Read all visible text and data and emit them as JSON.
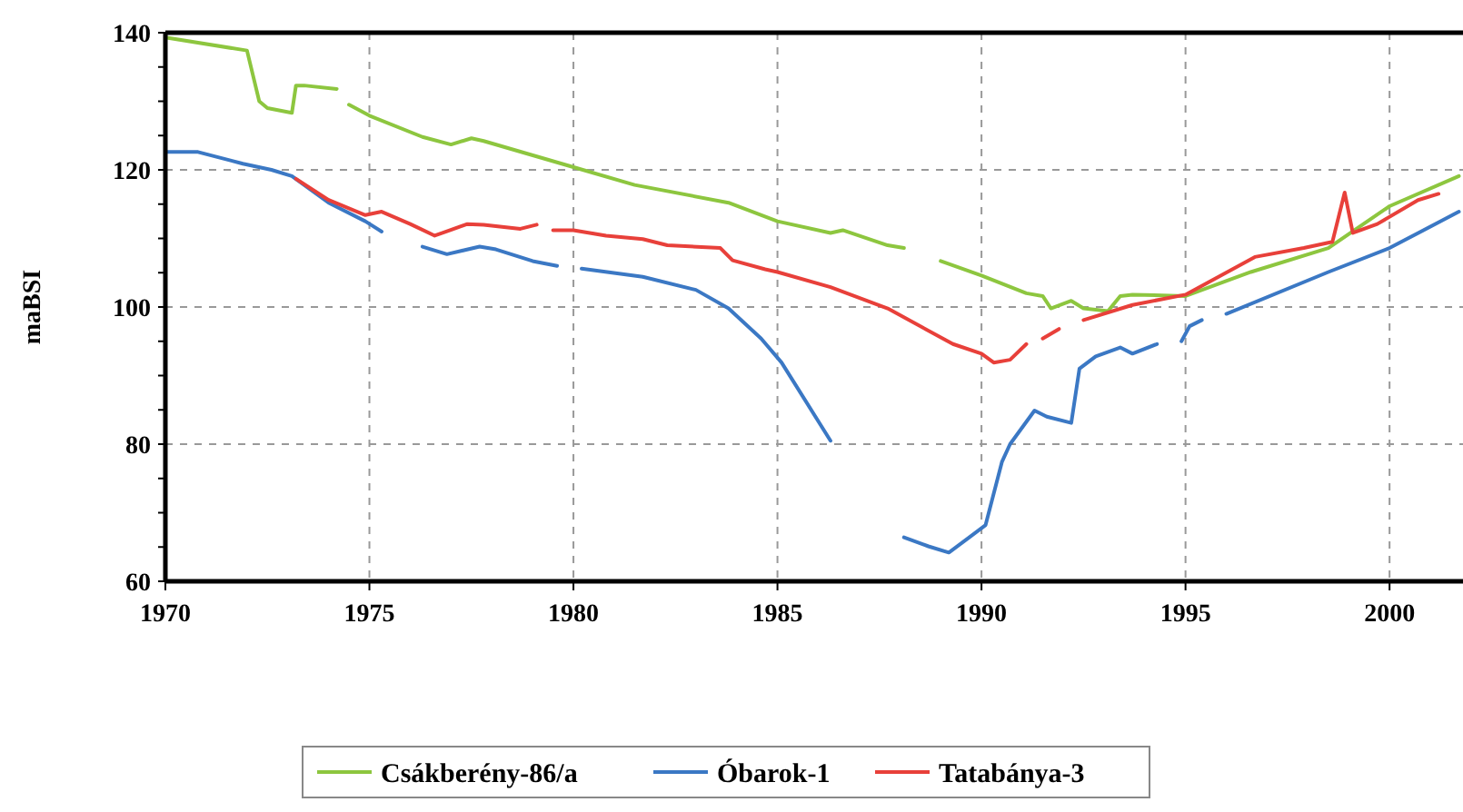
{
  "chart_data": {
    "type": "line",
    "ylabel": "maBSI",
    "xlim": [
      1970,
      2001.8
    ],
    "xticks": [
      1970,
      1975,
      1980,
      1985,
      1990,
      1995,
      2000
    ],
    "ylim": [
      60,
      140
    ],
    "yticks": [
      60,
      {
        "value": 65,
        "label": null
      },
      {
        "value": 70,
        "label": null
      },
      {
        "value": 75,
        "label": null
      },
      80,
      {
        "value": 85,
        "label": null
      },
      {
        "value": 90,
        "label": null
      },
      {
        "value": 95,
        "label": null
      },
      100,
      {
        "value": 105,
        "label": null
      },
      {
        "value": 110,
        "label": null
      },
      {
        "value": 115,
        "label": null
      },
      120,
      {
        "value": 125,
        "label": null
      },
      {
        "value": 130,
        "label": null
      },
      {
        "value": 135,
        "label": null
      },
      140
    ],
    "grid": true,
    "legend": "bottom",
    "line_style": "solid",
    "marker": "none",
    "series": [
      {
        "name": "Csákberény-86/a",
        "color": "#8dc63f",
        "x": [
          1970,
          1972.0,
          1972.3,
          1972.5,
          1973.1,
          1973.2,
          1973.4,
          1974.2,
          1974.35,
          1974.5,
          1975,
          1976.3,
          1977,
          1977.5,
          1977.8,
          1980,
          1981.5,
          1983.8,
          1985,
          1986.3,
          1986.6,
          1987.7,
          1988.1,
          1988.5,
          1989,
          1990,
          1991.1,
          1991.5,
          1991.7,
          1992.2,
          1992.5,
          1993.1,
          1993.4,
          1993.7,
          1995,
          1996.6,
          1998.5,
          2000,
          2001.7
        ],
        "values": [
          139.3,
          137.4,
          130,
          129,
          128.3,
          132.3,
          132.3,
          131.8,
          null,
          129.5,
          127.9,
          124.8,
          123.7,
          124.6,
          124.2,
          120.4,
          117.8,
          115.2,
          112.5,
          110.8,
          111.2,
          109,
          108.6,
          null,
          106.7,
          104.6,
          102,
          101.6,
          99.8,
          100.9,
          99.8,
          99.4,
          101.6,
          101.8,
          101.6,
          105.1,
          108.6,
          114.7,
          119.1
        ]
      },
      {
        "name": "Óbarok-1",
        "color": "#3b78c4",
        "x": [
          1970,
          1970.8,
          1971.9,
          1972.6,
          1973.1,
          1974,
          1974.9,
          1975.3,
          1975.8,
          1976.3,
          1976.9,
          1977.7,
          1978.1,
          1979,
          1979.6,
          1979.9,
          1980.2,
          1981.7,
          1983,
          1983.8,
          1984.6,
          1985.1,
          1986.3,
          1987.2,
          1988.1,
          1988.7,
          1989.2,
          1989.7,
          1990.1,
          1990.5,
          1990.7,
          1991.3,
          1991.6,
          1992.2,
          1992.4,
          1992.8,
          1993.4,
          1993.7,
          1994.3,
          1994.6,
          1994.9,
          1995.1,
          1995.4,
          1995.7,
          1996,
          1998.5,
          2000,
          2001.7
        ],
        "values": [
          122.6,
          122.6,
          120.9,
          120,
          119.1,
          115.2,
          112.5,
          111,
          null,
          108.8,
          107.7,
          108.8,
          108.4,
          106.7,
          106,
          null,
          105.6,
          104.4,
          102.5,
          99.8,
          95.4,
          91.9,
          80.5,
          null,
          66.4,
          65.1,
          64.2,
          66.4,
          68.2,
          77.4,
          80,
          84.9,
          84,
          83.1,
          91,
          92.8,
          94.1,
          93.2,
          94.6,
          null,
          95,
          97.2,
          98.1,
          null,
          99,
          105.1,
          108.6,
          113.9
        ]
      },
      {
        "name": "Tatabánya-3",
        "color": "#e8403a",
        "x": [
          1973.2,
          1974,
          1974.9,
          1975.3,
          1976,
          1976.6,
          1977.4,
          1977.8,
          1978.7,
          1979.1,
          1979.3,
          1979.5,
          1980,
          1980.8,
          1981.7,
          1982.3,
          1983.6,
          1983.9,
          1984.7,
          1985,
          1986.3,
          1987.7,
          1989.3,
          1990,
          1990.3,
          1990.7,
          1991.1,
          1991.3,
          1991.5,
          1991.9,
          1992.2,
          1992.5,
          1993.7,
          1995,
          1996.7,
          1997.9,
          1998.6,
          1998.9,
          1999.1,
          1999.7,
          2000.7,
          2001.2
        ],
        "values": [
          118.7,
          115.6,
          113.4,
          113.9,
          112.1,
          110.4,
          112.1,
          112,
          111.4,
          112,
          null,
          111.2,
          111.2,
          110.4,
          109.9,
          109,
          108.6,
          106.8,
          105.5,
          105.1,
          102.9,
          99.8,
          94.6,
          93.2,
          91.9,
          92.3,
          94.6,
          null,
          95.4,
          96.8,
          null,
          98.1,
          100.3,
          101.8,
          107.3,
          108.6,
          109.5,
          116.7,
          110.8,
          112.1,
          115.6,
          116.5
        ]
      }
    ]
  }
}
